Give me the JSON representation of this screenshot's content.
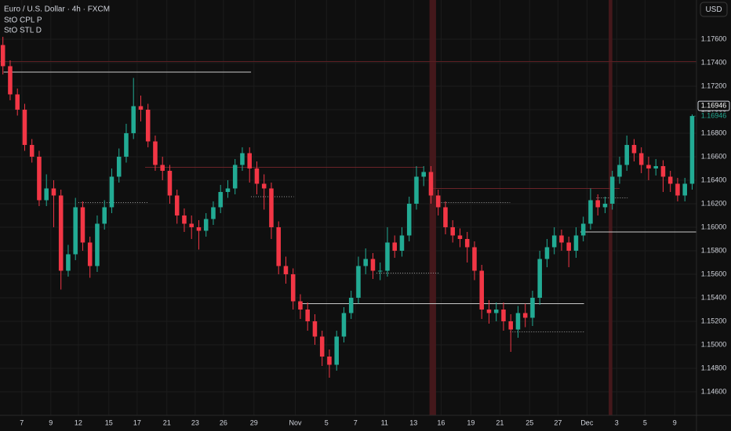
{
  "chart_data": {
    "type": "candlestick",
    "title": "Euro / U.S. Dollar · 4h · FXCM",
    "indicators": [
      "StO CPL P",
      "StO STL D"
    ],
    "currency_button": "USD",
    "up_color": "#22ab94",
    "down_color": "#f23645",
    "grid": true,
    "xlim": [
      -0.4,
      95.6
    ],
    "ylim": [
      1.144,
      1.17933
    ],
    "xticks": [
      {
        "value": 2.6,
        "label": "7"
      },
      {
        "value": 6.6,
        "label": "9"
      },
      {
        "value": 10.4,
        "label": "12"
      },
      {
        "value": 14.6,
        "label": "15"
      },
      {
        "value": 18.5,
        "label": "17"
      },
      {
        "value": 22.6,
        "label": "21"
      },
      {
        "value": 26.5,
        "label": "23"
      },
      {
        "value": 30.4,
        "label": "26"
      },
      {
        "value": 34.6,
        "label": "29"
      },
      {
        "value": 40.3,
        "label": "Nov"
      },
      {
        "value": 44.6,
        "label": "5"
      },
      {
        "value": 48.6,
        "label": "7"
      },
      {
        "value": 52.6,
        "label": "11"
      },
      {
        "value": 56.6,
        "label": "13"
      },
      {
        "value": 60.4,
        "label": "16"
      },
      {
        "value": 64.5,
        "label": "19"
      },
      {
        "value": 68.5,
        "label": "21"
      },
      {
        "value": 72.6,
        "label": "25"
      },
      {
        "value": 76.5,
        "label": "27"
      },
      {
        "value": 80.5,
        "label": "Dec"
      },
      {
        "value": 84.6,
        "label": "3"
      },
      {
        "value": 88.5,
        "label": "5"
      },
      {
        "value": 92.6,
        "label": "9"
      }
    ],
    "yticks": [
      {
        "value": 1.176,
        "label": "1.17600"
      },
      {
        "value": 1.174,
        "label": "1.17400"
      },
      {
        "value": 1.172,
        "label": "1.17200"
      },
      {
        "value": 1.17,
        "label": "1.17000"
      },
      {
        "value": 1.168,
        "label": "1.16800"
      },
      {
        "value": 1.166,
        "label": "1.16600"
      },
      {
        "value": 1.164,
        "label": "1.16400"
      },
      {
        "value": 1.162,
        "label": "1.16200"
      },
      {
        "value": 1.16,
        "label": "1.16000"
      },
      {
        "value": 1.158,
        "label": "1.15800"
      },
      {
        "value": 1.156,
        "label": "1.15600"
      },
      {
        "value": 1.154,
        "label": "1.15400"
      },
      {
        "value": 1.152,
        "label": "1.15200"
      },
      {
        "value": 1.15,
        "label": "1.15000"
      },
      {
        "value": 1.148,
        "label": "1.14800"
      },
      {
        "value": 1.146,
        "label": "1.14600"
      }
    ],
    "price_tags": [
      {
        "value": 1.16946,
        "label": "1.16946"
      },
      {
        "value": 1.16946,
        "label": "1.16946"
      }
    ],
    "open": [
      1.1755,
      1.1737,
      1.1713,
      1.17,
      1.167,
      1.166,
      1.1623,
      1.1633,
      1.1627,
      1.1563,
      1.1577,
      1.1617,
      1.1587,
      1.1567,
      1.1603,
      1.1617,
      1.1643,
      1.166,
      1.168,
      1.1703,
      1.17,
      1.1673,
      1.1653,
      1.1648,
      1.1627,
      1.161,
      1.1603,
      1.16,
      1.1597,
      1.1607,
      1.1617,
      1.163,
      1.1633,
      1.1653,
      1.1663,
      1.165,
      1.1637,
      1.1633,
      1.16,
      1.1567,
      1.156,
      1.1537,
      1.153,
      1.152,
      1.1507,
      1.149,
      1.1483,
      1.1507,
      1.1527,
      1.154,
      1.1567,
      1.1573,
      1.1563,
      1.1563,
      1.1587,
      1.158,
      1.1593,
      1.162,
      1.1643,
      1.1647,
      1.1627,
      1.1617,
      1.16,
      1.1593,
      1.159,
      1.1583,
      1.1563,
      1.153,
      1.1527,
      1.153,
      1.152,
      1.1513,
      1.1527,
      1.1523,
      1.154,
      1.1573,
      1.1583,
      1.1593,
      1.1587,
      1.158,
      1.1593,
      1.1603,
      1.1623,
      1.1617,
      1.162,
      1.1643,
      1.1653,
      1.167,
      1.1663,
      1.1653,
      1.165,
      1.1652,
      1.1643,
      1.1637,
      1.1627,
      1.1637
    ],
    "high": [
      1.1762,
      1.1742,
      1.1718,
      1.1705,
      1.1675,
      1.1665,
      1.1645,
      1.164,
      1.1632,
      1.1585,
      1.1625,
      1.1622,
      1.1592,
      1.161,
      1.1623,
      1.165,
      1.1667,
      1.1688,
      1.1727,
      1.1712,
      1.1705,
      1.1678,
      1.166,
      1.1653,
      1.1632,
      1.1616,
      1.161,
      1.1606,
      1.1612,
      1.1622,
      1.1636,
      1.164,
      1.1658,
      1.1668,
      1.1668,
      1.1656,
      1.1645,
      1.1638,
      1.1605,
      1.1575,
      1.1565,
      1.1543,
      1.1536,
      1.1526,
      1.1512,
      1.1496,
      1.1512,
      1.1532,
      1.1546,
      1.1575,
      1.1582,
      1.1578,
      1.157,
      1.16,
      1.1593,
      1.16,
      1.1626,
      1.1652,
      1.1652,
      1.1652,
      1.1632,
      1.1622,
      1.1606,
      1.1599,
      1.1596,
      1.1588,
      1.1568,
      1.1538,
      1.1536,
      1.1536,
      1.1526,
      1.1533,
      1.1535,
      1.1546,
      1.158,
      1.159,
      1.16,
      1.1598,
      1.1592,
      1.16,
      1.1609,
      1.1633,
      1.1628,
      1.1626,
      1.1648,
      1.166,
      1.1678,
      1.1675,
      1.1668,
      1.166,
      1.1658,
      1.1657,
      1.1648,
      1.1642,
      1.1642,
      1.1696
    ],
    "low": [
      1.173,
      1.1708,
      1.1695,
      1.1665,
      1.1655,
      1.1618,
      1.1618,
      1.16,
      1.1547,
      1.1558,
      1.1572,
      1.158,
      1.1557,
      1.1562,
      1.1598,
      1.1612,
      1.1638,
      1.1655,
      1.1675,
      1.169,
      1.1668,
      1.1648,
      1.164,
      1.162,
      1.1603,
      1.1596,
      1.159,
      1.1581,
      1.1592,
      1.1602,
      1.1612,
      1.1625,
      1.1628,
      1.1648,
      1.1638,
      1.1628,
      1.1615,
      1.159,
      1.156,
      1.1552,
      1.153,
      1.1522,
      1.1512,
      1.15,
      1.1482,
      1.1472,
      1.1478,
      1.1502,
      1.1522,
      1.1535,
      1.156,
      1.1556,
      1.1555,
      1.1558,
      1.1574,
      1.1575,
      1.1588,
      1.1615,
      1.1635,
      1.162,
      1.161,
      1.1594,
      1.1587,
      1.1583,
      1.157,
      1.1555,
      1.1522,
      1.1518,
      1.152,
      1.1512,
      1.1494,
      1.1506,
      1.1515,
      1.1516,
      1.1534,
      1.1566,
      1.1577,
      1.158,
      1.1566,
      1.1574,
      1.1588,
      1.1598,
      1.161,
      1.1612,
      1.1615,
      1.1637,
      1.1648,
      1.1656,
      1.1646,
      1.164,
      1.1644,
      1.163,
      1.163,
      1.1622,
      1.1622,
      1.1632
    ],
    "close": [
      1.1737,
      1.1713,
      1.17,
      1.167,
      1.166,
      1.1623,
      1.1633,
      1.1627,
      1.1563,
      1.1577,
      1.1617,
      1.1587,
      1.1567,
      1.1603,
      1.1617,
      1.1643,
      1.166,
      1.168,
      1.1703,
      1.17,
      1.1673,
      1.1653,
      1.1648,
      1.1627,
      1.161,
      1.1603,
      1.16,
      1.1597,
      1.1607,
      1.1617,
      1.163,
      1.1633,
      1.1653,
      1.1663,
      1.165,
      1.1637,
      1.1633,
      1.16,
      1.1567,
      1.156,
      1.1537,
      1.153,
      1.152,
      1.1507,
      1.149,
      1.1483,
      1.1507,
      1.1527,
      1.154,
      1.1567,
      1.1573,
      1.1563,
      1.1563,
      1.1587,
      1.158,
      1.1593,
      1.162,
      1.1643,
      1.1647,
      1.1627,
      1.1617,
      1.16,
      1.1593,
      1.159,
      1.1583,
      1.1563,
      1.153,
      1.1527,
      1.153,
      1.152,
      1.1513,
      1.1527,
      1.1523,
      1.154,
      1.1573,
      1.1583,
      1.1593,
      1.1587,
      1.158,
      1.1593,
      1.1603,
      1.1623,
      1.1617,
      1.162,
      1.1643,
      1.1653,
      1.167,
      1.1663,
      1.1653,
      1.165,
      1.1652,
      1.1643,
      1.1637,
      1.1627,
      1.1637,
      1.16946
    ],
    "levels": [
      {
        "price": 1.1741,
        "from": -0.4,
        "to": 95.6,
        "color": "#5a1f22",
        "style": "solid"
      },
      {
        "price": 1.1732,
        "from": 0.1,
        "to": 34.2,
        "color": "#c8c8c8",
        "style": "solid"
      },
      {
        "price": 1.1651,
        "from": 19.6,
        "to": 58.0,
        "color": "#6b2328",
        "style": "solid"
      },
      {
        "price": 1.1633,
        "from": 59.0,
        "to": 85.0,
        "color": "#6b2328",
        "style": "solid"
      },
      {
        "price": 1.1535,
        "from": 40.7,
        "to": 80.1,
        "color": "#c8c8c8",
        "style": "solid"
      },
      {
        "price": 1.1596,
        "from": 79.6,
        "to": 95.6,
        "color": "#c8c8c8",
        "style": "solid"
      },
      {
        "price": 1.1621,
        "from": 10.4,
        "to": 20.1,
        "color": "#9a9a9a",
        "style": "dotted"
      },
      {
        "price": 1.1626,
        "from": 34.2,
        "to": 40.1,
        "color": "#9a9a9a",
        "style": "dotted"
      },
      {
        "price": 1.1561,
        "from": 51.5,
        "to": 60.1,
        "color": "#9a9a9a",
        "style": "dotted"
      },
      {
        "price": 1.1621,
        "from": 60.1,
        "to": 69.9,
        "color": "#9a9a9a",
        "style": "dotted"
      },
      {
        "price": 1.1511,
        "from": 69.9,
        "to": 80.1,
        "color": "#9a9a9a",
        "style": "dotted"
      },
      {
        "price": 1.1625,
        "from": 81.8,
        "to": 86.1,
        "color": "#9a9a9a",
        "style": "dotted"
      }
    ],
    "highlights": [
      {
        "from": 58.8,
        "to": 59.7,
        "color": "#4a1a1d"
      },
      {
        "from": 83.5,
        "to": 84.0,
        "color": "#4a1a1d"
      }
    ]
  }
}
